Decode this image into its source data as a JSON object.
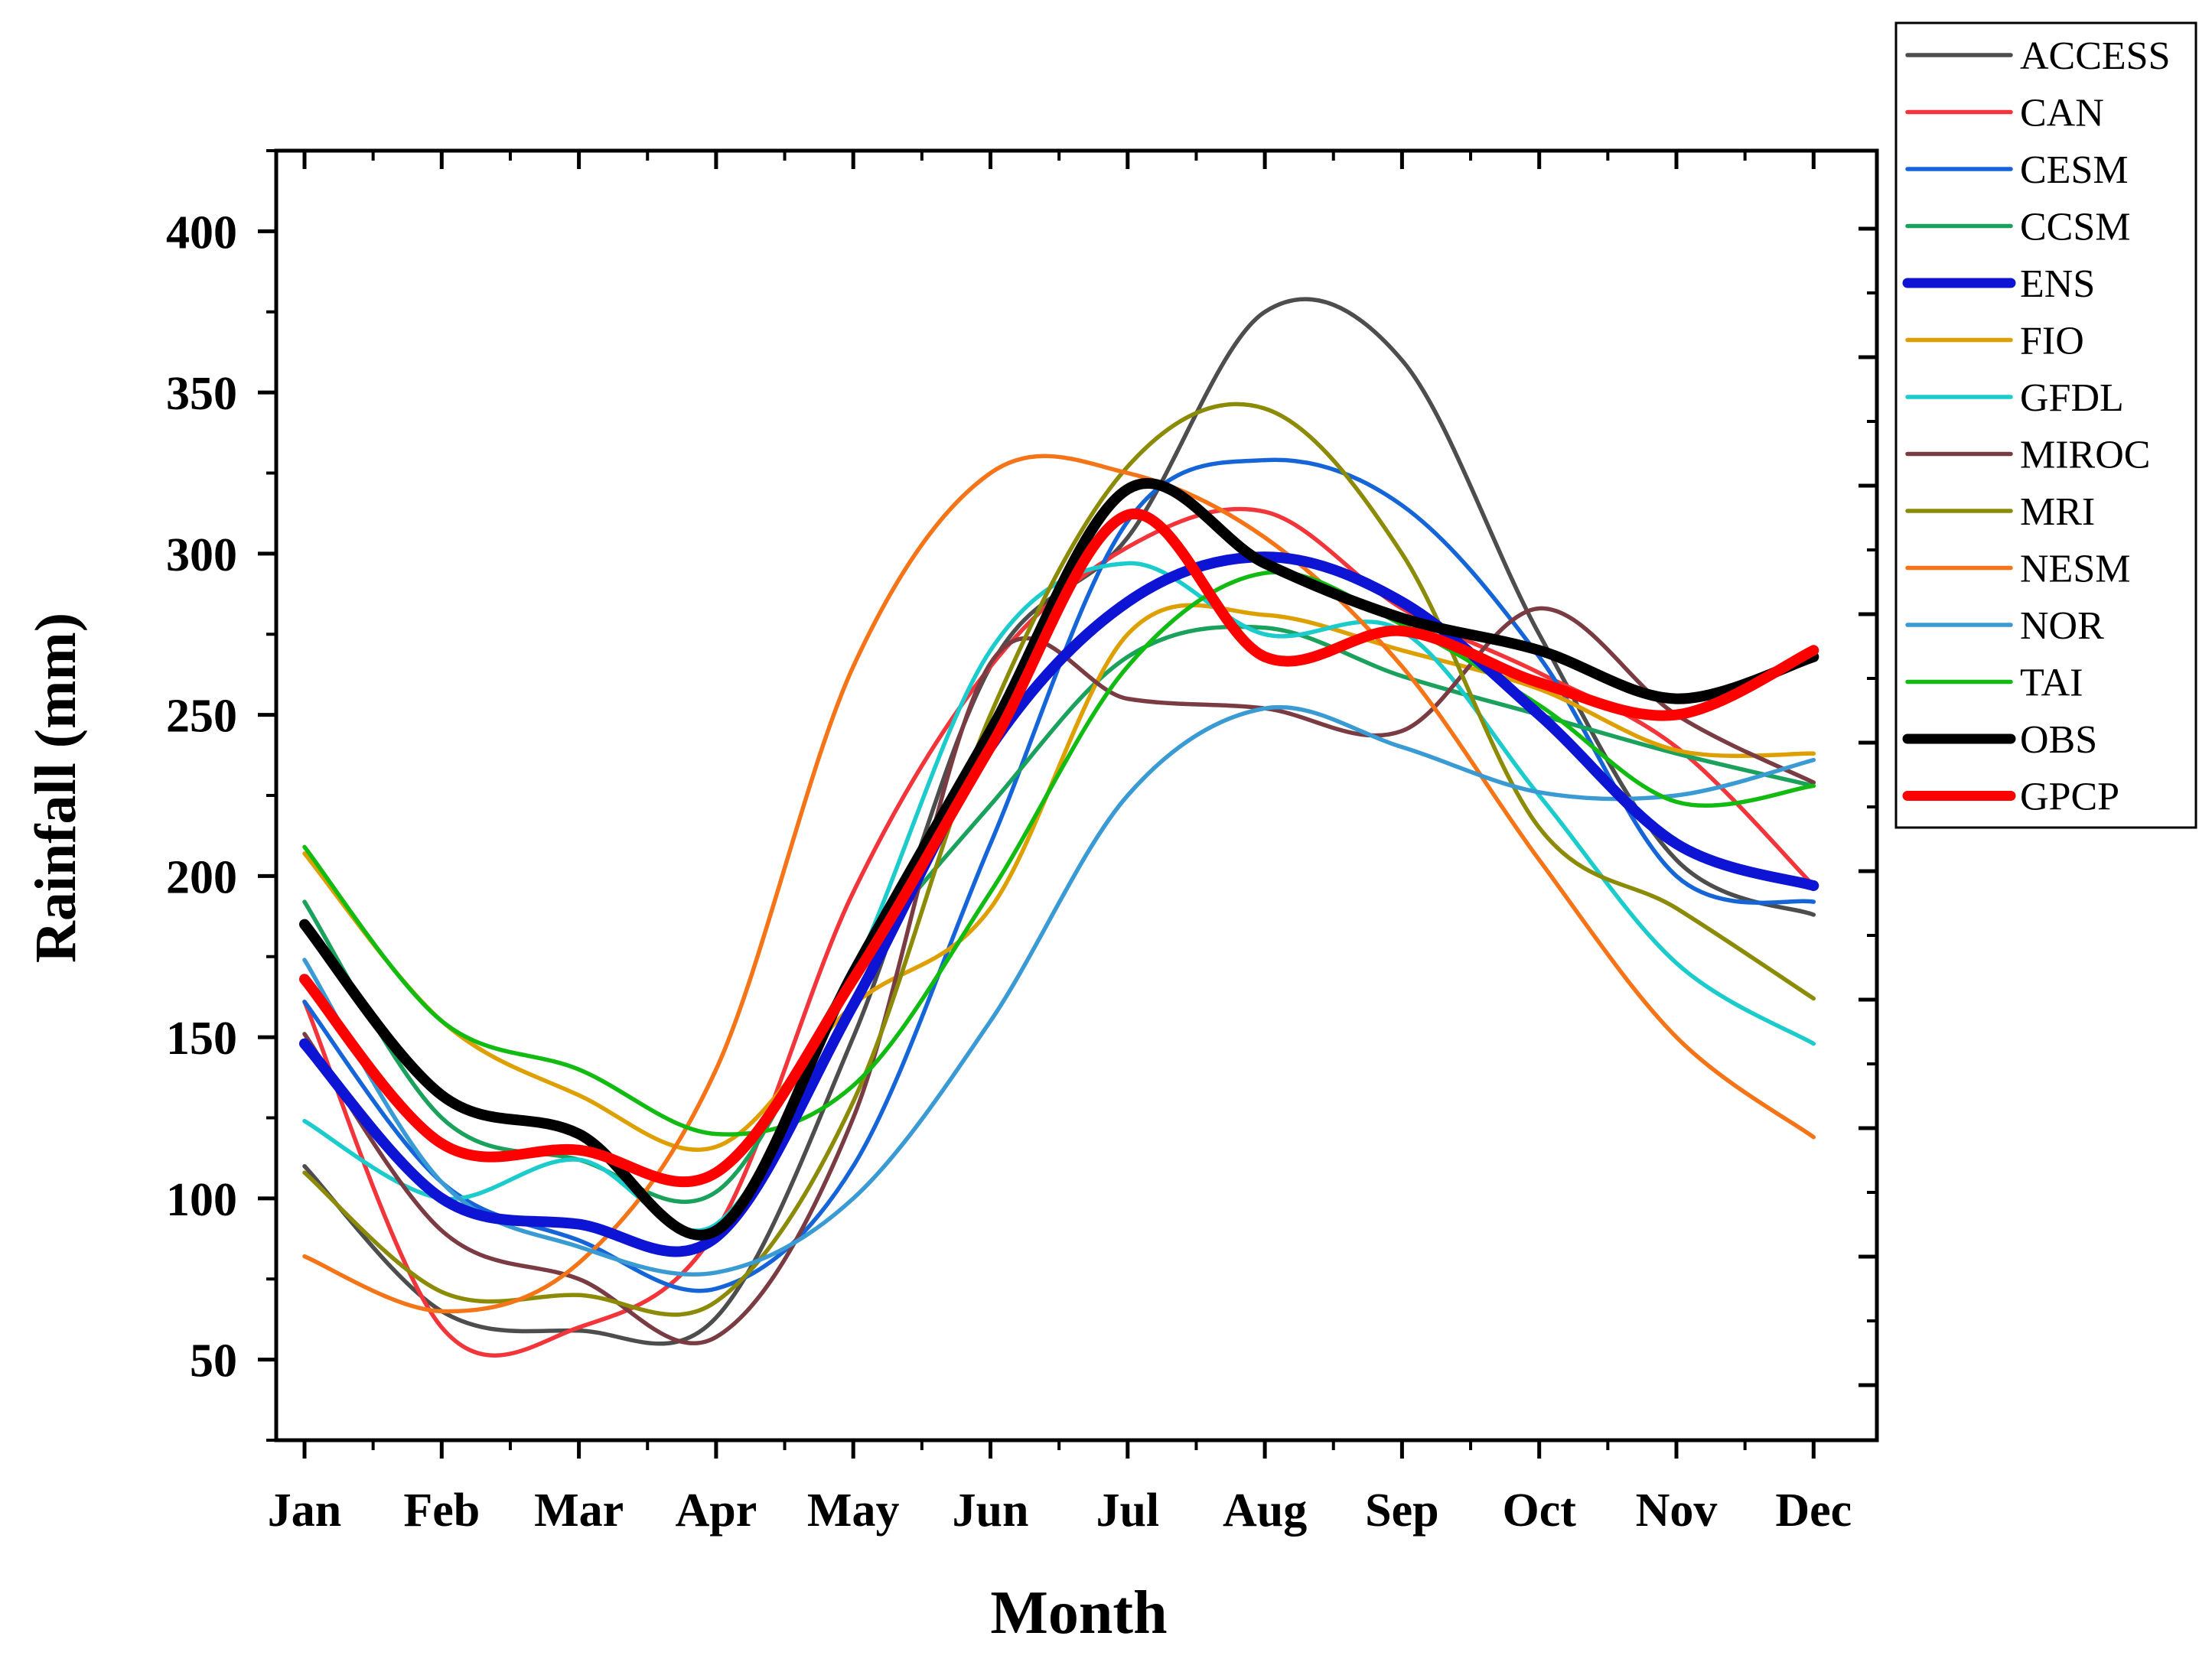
{
  "chart_data": {
    "type": "line",
    "title": "",
    "xlabel": "Month",
    "ylabel": "Rainfall (mm)",
    "categories": [
      "Jan",
      "Feb",
      "Mar",
      "Apr",
      "May",
      "Jun",
      "Jul",
      "Aug",
      "Sep",
      "Oct",
      "Nov",
      "Dec"
    ],
    "ylim": [
      25,
      425
    ],
    "yticks": [
      50,
      100,
      150,
      200,
      250,
      300,
      350,
      400
    ],
    "grid": false,
    "legend_position": "outside-top-right",
    "series": [
      {
        "name": "ACCESS",
        "color": "#4d4d4d",
        "emphasis": false,
        "values": [
          110,
          65,
          59,
          63,
          150,
          265,
          305,
          375,
          360,
          275,
          205,
          188
        ]
      },
      {
        "name": "CAN",
        "color": "#f2353b",
        "emphasis": false,
        "values": [
          161,
          60,
          60,
          90,
          195,
          265,
          302,
          313,
          283,
          263,
          240,
          197
        ]
      },
      {
        "name": "CESM",
        "color": "#1565d8",
        "emphasis": false,
        "values": [
          161,
          105,
          87,
          72,
          110,
          210,
          310,
          329,
          315,
          268,
          200,
          192
        ]
      },
      {
        "name": "CCSM",
        "color": "#1aa15c",
        "emphasis": false,
        "values": [
          192,
          125,
          112,
          102,
          170,
          222,
          268,
          277,
          262,
          250,
          238,
          228
        ]
      },
      {
        "name": "ENS",
        "color": "#0d14d4",
        "emphasis": true,
        "values": [
          148,
          100,
          92,
          88,
          160,
          240,
          285,
          299,
          285,
          250,
          210,
          197
        ]
      },
      {
        "name": "FIO",
        "color": "#dea000",
        "emphasis": false,
        "values": [
          207,
          155,
          132,
          116,
          160,
          190,
          275,
          281,
          270,
          258,
          239,
          238
        ]
      },
      {
        "name": "GFDL",
        "color": "#1ccbcb",
        "emphasis": false,
        "values": [
          124,
          100,
          112,
          92,
          170,
          270,
          297,
          275,
          276,
          225,
          173,
          148
        ]
      },
      {
        "name": "MIROC",
        "color": "#7a3c42",
        "emphasis": false,
        "values": [
          151,
          90,
          75,
          57,
          125,
          266,
          255,
          252,
          245,
          283,
          250,
          229
        ]
      },
      {
        "name": "MRI",
        "color": "#8b8b07",
        "emphasis": false,
        "values": [
          108,
          71,
          70,
          68,
          130,
          250,
          327,
          345,
          300,
          215,
          190,
          162
        ]
      },
      {
        "name": "NESM",
        "color": "#f57418",
        "emphasis": false,
        "values": [
          82,
          65,
          80,
          140,
          265,
          325,
          325,
          305,
          265,
          205,
          150,
          119
        ]
      },
      {
        "name": "NOR",
        "color": "#3a9bd4",
        "emphasis": false,
        "values": [
          174,
          105,
          85,
          77,
          100,
          155,
          225,
          252,
          240,
          226,
          225,
          236
        ]
      },
      {
        "name": "TAI",
        "color": "#12bb12",
        "emphasis": false,
        "values": [
          209,
          155,
          140,
          120,
          135,
          195,
          265,
          294,
          278,
          253,
          223,
          228
        ]
      },
      {
        "name": "OBS",
        "color": "#000000",
        "emphasis": true,
        "values": [
          185,
          132,
          120,
          90,
          170,
          245,
          320,
          297,
          280,
          270,
          255,
          268
        ]
      },
      {
        "name": "GPCP",
        "color": "#fe0000",
        "emphasis": true,
        "values": [
          168,
          117,
          115,
          108,
          168,
          240,
          312,
          268,
          276,
          260,
          250,
          270
        ]
      }
    ]
  }
}
